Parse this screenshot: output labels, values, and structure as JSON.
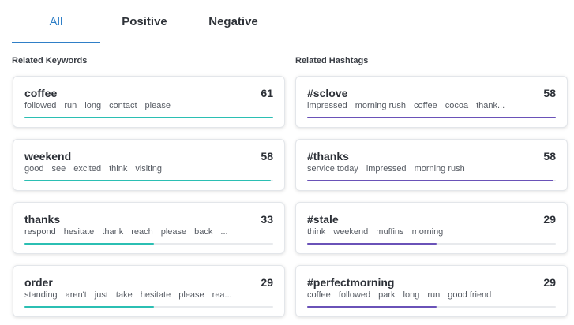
{
  "colors": {
    "accent": "#2f7fc7",
    "keyword_bar": "#2bbfb3",
    "hashtag_bar": "#6a52b8",
    "track": "#e8eaed"
  },
  "tabs": [
    {
      "label": "All",
      "active": true
    },
    {
      "label": "Positive",
      "active": false
    },
    {
      "label": "Negative",
      "active": false
    }
  ],
  "keywords": {
    "title": "Related Keywords",
    "items": [
      {
        "name": "coffee",
        "count": "61",
        "fill": 1.0,
        "terms": [
          "followed",
          "run",
          "long",
          "contact",
          "please"
        ]
      },
      {
        "name": "weekend",
        "count": "58",
        "fill": 0.99,
        "terms": [
          "good",
          "see",
          "excited",
          "think",
          "visiting"
        ]
      },
      {
        "name": "thanks",
        "count": "33",
        "fill": 0.52,
        "terms": [
          "respond",
          "hesitate",
          "thank",
          "reach",
          "please",
          "back",
          "..."
        ]
      },
      {
        "name": "order",
        "count": "29",
        "fill": 0.52,
        "terms": [
          "standing",
          "aren't",
          "just",
          "take",
          "hesitate",
          "please",
          "rea..."
        ]
      }
    ]
  },
  "hashtags": {
    "title": "Related Hashtags",
    "items": [
      {
        "name": "#sclove",
        "count": "58",
        "fill": 1.0,
        "terms": [
          "impressed",
          "morning rush",
          "coffee",
          "cocoa",
          "thank..."
        ]
      },
      {
        "name": "#thanks",
        "count": "58",
        "fill": 0.99,
        "terms": [
          "service today",
          "impressed",
          "morning rush"
        ]
      },
      {
        "name": "#stale",
        "count": "29",
        "fill": 0.52,
        "terms": [
          "think",
          "weekend",
          "muffins",
          "morning"
        ]
      },
      {
        "name": "#perfectmorning",
        "count": "29",
        "fill": 0.52,
        "terms": [
          "coffee",
          "followed",
          "park",
          "long",
          "run",
          "good friend"
        ]
      }
    ]
  }
}
